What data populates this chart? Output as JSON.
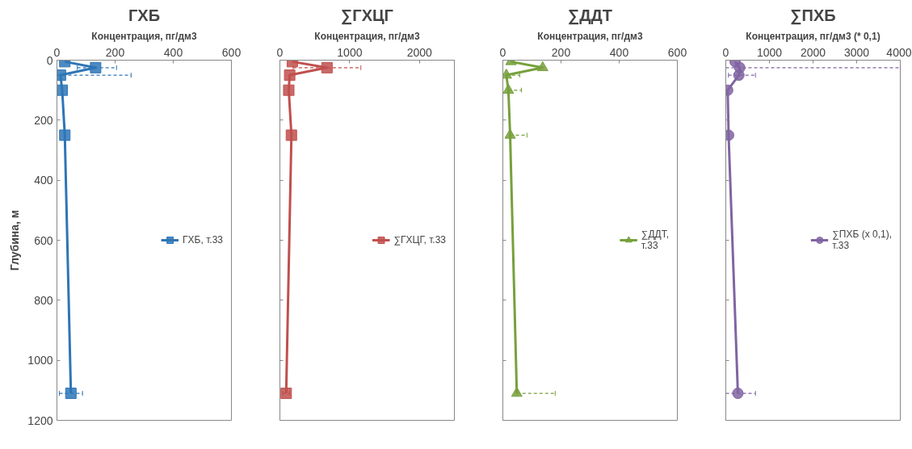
{
  "chart_data": [
    {
      "type": "line",
      "title": "ГХБ",
      "xlabel": "Концентрация, пг/дм3",
      "ylabel": "Глубина, м",
      "xlim": [
        0,
        600
      ],
      "xticks": [
        0,
        200,
        400,
        600
      ],
      "ylim": [
        1200,
        0
      ],
      "yticks": [
        0,
        200,
        400,
        600,
        800,
        1000,
        1200
      ],
      "grid": false,
      "legend": "right",
      "marker": "square",
      "line_style": "solid",
      "series": [
        {
          "name": "ГХБ, т.33",
          "color": "#2e75b6",
          "x": [
            27,
            133,
            12,
            18,
            27,
            48
          ],
          "values": [
            5,
            25,
            50,
            100,
            250,
            1110
          ],
          "xerrors": [
            null,
            [
              70,
              205
            ],
            [
              0,
              255
            ],
            null,
            null,
            [
              8,
              88
            ]
          ]
        }
      ]
    },
    {
      "type": "line",
      "title": "∑ГХЦГ",
      "xlabel": "Концентрация, пг/дм3",
      "xlim": [
        0,
        2500
      ],
      "xticks": [
        0,
        1000,
        2000
      ],
      "ylim": [
        1200,
        0
      ],
      "yticks": [
        0,
        200,
        400,
        600,
        800,
        1000,
        1200
      ],
      "tick_labels": "x",
      "grid": false,
      "legend": "right",
      "marker": "square",
      "line_style": "solid",
      "series": [
        {
          "name": "∑ГХЦГ, т.33",
          "color": "#c0504d",
          "x": [
            178,
            675,
            140,
            127,
            165,
            90
          ],
          "values": [
            5,
            25,
            50,
            100,
            250,
            1110
          ],
          "xerrors": [
            null,
            [
              190,
              1160
            ],
            null,
            null,
            null,
            [
              40,
              140
            ]
          ]
        }
      ]
    },
    {
      "type": "line",
      "title": "∑ДДТ",
      "xlabel": "Концентрация, пг/дм3",
      "xlim": [
        0,
        600
      ],
      "xticks": [
        0,
        200,
        400,
        600
      ],
      "ylim": [
        1200,
        0
      ],
      "yticks": [
        0,
        200,
        400,
        600,
        800,
        1000,
        1200
      ],
      "tick_labels": "x",
      "grid": false,
      "legend": "right",
      "marker": "triangle",
      "line_style": "solid",
      "series": [
        {
          "name": "∑ДДТ,\nт.33",
          "color": "#77a03c",
          "x": [
            28,
            137,
            12,
            19,
            25,
            48
          ],
          "values": [
            5,
            25,
            50,
            100,
            250,
            1110
          ],
          "xerrors": [
            null,
            null,
            [
              12,
              58
            ],
            [
              19,
              64
            ],
            [
              25,
              83
            ],
            [
              48,
              180
            ]
          ]
        }
      ]
    },
    {
      "type": "line",
      "title": "∑ПХБ",
      "xlabel": "Концентрация, пг/дм3 (* 0,1)",
      "xlim": [
        0,
        4000
      ],
      "xticks": [
        0,
        1000,
        2000,
        3000,
        4000
      ],
      "ylim": [
        1200,
        0
      ],
      "yticks": [
        0,
        200,
        400,
        600,
        800,
        1000,
        1200
      ],
      "tick_labels": "x",
      "grid": false,
      "legend": "right",
      "marker": "circle",
      "line_style": "solid",
      "series": [
        {
          "name": "∑ПХБ (x 0,1),\nт.33",
          "color": "#8064a2",
          "x": [
            213,
            320,
            300,
            43,
            64,
            277
          ],
          "values": [
            5,
            25,
            50,
            100,
            250,
            1110
          ],
          "xerrors": [
            null,
            [
              0,
              4000
            ],
            [
              60,
              680
            ],
            null,
            null,
            [
              0,
              680
            ]
          ]
        }
      ]
    }
  ]
}
